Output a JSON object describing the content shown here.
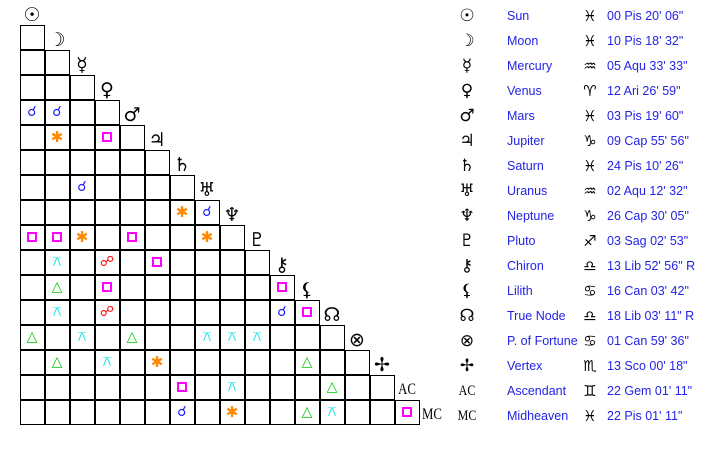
{
  "colors": {
    "conjunction": "#1a1aff",
    "square": "#ff00ff",
    "sextile": "#ff8800",
    "trine": "#00c800",
    "opposition": "#ff0000",
    "quincunx": "#00e0e0",
    "text": "#2323e6"
  },
  "aspect_glyphs": {
    "conjunction": "☌",
    "sextile": "✱",
    "trine": "△",
    "opposition": "☍",
    "quincunx": "⚻",
    "square": ""
  },
  "planets": [
    {
      "name": "Sun",
      "icon": "sun-icon",
      "glyph": "☉",
      "sign_icon": "pisces-icon",
      "sign": "♓",
      "position": "00 Pis 20' 06\""
    },
    {
      "name": "Moon",
      "icon": "moon-icon",
      "glyph": "☽",
      "sign_icon": "pisces-icon",
      "sign": "♓",
      "position": "10 Pis 18' 32\""
    },
    {
      "name": "Mercury",
      "icon": "mercury-icon",
      "glyph": "☿",
      "sign_icon": "aquarius-icon",
      "sign": "♒",
      "position": "05 Aqu 33' 33\""
    },
    {
      "name": "Venus",
      "icon": "venus-icon",
      "glyph": "♀",
      "sign_icon": "aries-icon",
      "sign": "♈",
      "position": "12 Ari 26' 59\""
    },
    {
      "name": "Mars",
      "icon": "mars-icon",
      "glyph": "♂",
      "sign_icon": "pisces-icon",
      "sign": "♓",
      "position": "03 Pis 19' 60\""
    },
    {
      "name": "Jupiter",
      "icon": "jupiter-icon",
      "glyph": "♃",
      "sign_icon": "capricorn-icon",
      "sign": "♑",
      "position": "09 Cap 55' 56\""
    },
    {
      "name": "Saturn",
      "icon": "saturn-icon",
      "glyph": "♄",
      "sign_icon": "pisces-icon",
      "sign": "♓",
      "position": "24 Pis 10' 26\""
    },
    {
      "name": "Uranus",
      "icon": "uranus-icon",
      "glyph": "♅",
      "sign_icon": "aquarius-icon",
      "sign": "♒",
      "position": "02 Aqu 12' 32\""
    },
    {
      "name": "Neptune",
      "icon": "neptune-icon",
      "glyph": "♆",
      "sign_icon": "capricorn-icon",
      "sign": "♑",
      "position": "26 Cap 30' 05\""
    },
    {
      "name": "Pluto",
      "icon": "pluto-icon",
      "glyph": "♇",
      "sign_icon": "sagittarius-icon",
      "sign": "♐",
      "position": "03 Sag 02' 53\""
    },
    {
      "name": "Chiron",
      "icon": "chiron-icon",
      "glyph": "⚷",
      "sign_icon": "libra-icon",
      "sign": "♎",
      "position": "13 Lib 52' 56\" R"
    },
    {
      "name": "Lilith",
      "icon": "lilith-icon",
      "glyph": "⚸",
      "sign_icon": "cancer-icon",
      "sign": "♋",
      "position": "16 Can 03' 42\""
    },
    {
      "name": "True Node",
      "icon": "true-node-icon",
      "glyph": "☊",
      "sign_icon": "libra-icon",
      "sign": "♎",
      "position": "18 Lib 03' 11\" R"
    },
    {
      "name": "P. of Fortune",
      "icon": "part-of-fortune-icon",
      "glyph": "⊗",
      "sign_icon": "cancer-icon",
      "sign": "♋",
      "position": "01 Can 59' 36\""
    },
    {
      "name": "Vertex",
      "icon": "vertex-icon",
      "glyph": "✢",
      "sign_icon": "scorpio-icon",
      "sign": "♏",
      "position": "13 Sco 00' 18\""
    },
    {
      "name": "Ascendant",
      "icon": "ascendant-label",
      "glyph": "AC",
      "sign_icon": "gemini-icon",
      "sign": "♊",
      "position": "22 Gem 01' 11\""
    },
    {
      "name": "Midheaven",
      "icon": "midheaven-label",
      "glyph": "MC",
      "sign_icon": "pisces-icon",
      "sign": "♓",
      "position": "22 Pis 01' 11\""
    }
  ],
  "aspects": [
    [
      "Mars",
      "Sun",
      "conjunction"
    ],
    [
      "Mars",
      "Moon",
      "conjunction"
    ],
    [
      "Jupiter",
      "Moon",
      "sextile"
    ],
    [
      "Jupiter",
      "Venus",
      "square"
    ],
    [
      "Uranus",
      "Mercury",
      "conjunction"
    ],
    [
      "Neptune",
      "Saturn",
      "sextile"
    ],
    [
      "Neptune",
      "Uranus",
      "conjunction"
    ],
    [
      "Pluto",
      "Sun",
      "square"
    ],
    [
      "Pluto",
      "Moon",
      "square"
    ],
    [
      "Pluto",
      "Mercury",
      "sextile"
    ],
    [
      "Pluto",
      "Mars",
      "square"
    ],
    [
      "Pluto",
      "Uranus",
      "sextile"
    ],
    [
      "Chiron",
      "Moon",
      "quincunx"
    ],
    [
      "Chiron",
      "Venus",
      "opposition"
    ],
    [
      "Chiron",
      "Jupiter",
      "square"
    ],
    [
      "Lilith",
      "Moon",
      "trine"
    ],
    [
      "Lilith",
      "Venus",
      "square"
    ],
    [
      "Lilith",
      "Chiron",
      "square"
    ],
    [
      "True Node",
      "Moon",
      "quincunx"
    ],
    [
      "True Node",
      "Venus",
      "opposition"
    ],
    [
      "True Node",
      "Chiron",
      "conjunction"
    ],
    [
      "True Node",
      "Lilith",
      "square"
    ],
    [
      "P. of Fortune",
      "Sun",
      "trine"
    ],
    [
      "P. of Fortune",
      "Mercury",
      "quincunx"
    ],
    [
      "P. of Fortune",
      "Mars",
      "trine"
    ],
    [
      "P. of Fortune",
      "Uranus",
      "quincunx"
    ],
    [
      "P. of Fortune",
      "Neptune",
      "quincunx"
    ],
    [
      "P. of Fortune",
      "Pluto",
      "quincunx"
    ],
    [
      "Vertex",
      "Moon",
      "trine"
    ],
    [
      "Vertex",
      "Venus",
      "quincunx"
    ],
    [
      "Vertex",
      "Jupiter",
      "sextile"
    ],
    [
      "Vertex",
      "Lilith",
      "trine"
    ],
    [
      "Ascendant",
      "Saturn",
      "square"
    ],
    [
      "Ascendant",
      "Neptune",
      "quincunx"
    ],
    [
      "Ascendant",
      "True Node",
      "trine"
    ],
    [
      "Midheaven",
      "Saturn",
      "conjunction"
    ],
    [
      "Midheaven",
      "Neptune",
      "sextile"
    ],
    [
      "Midheaven",
      "Lilith",
      "trine"
    ],
    [
      "Midheaven",
      "True Node",
      "quincunx"
    ],
    [
      "Midheaven",
      "Ascendant",
      "square"
    ]
  ]
}
